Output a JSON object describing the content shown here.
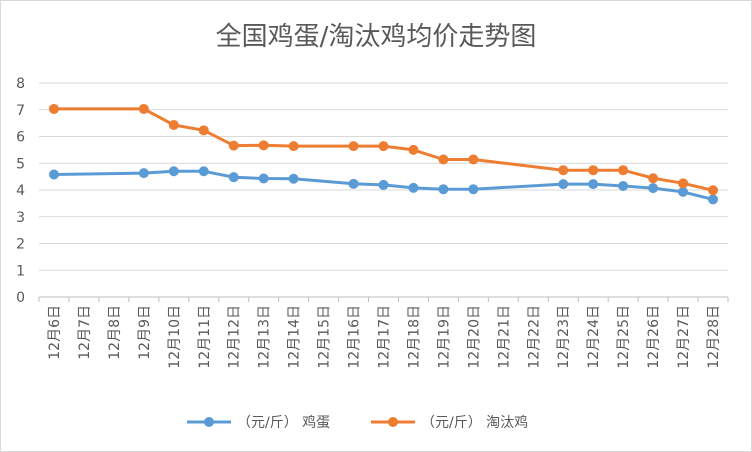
{
  "chart_data": {
    "type": "line",
    "title": "全国鸡蛋/淘汰鸡均价走势图",
    "xlabel": "",
    "ylabel": "",
    "ylim": [
      0,
      8
    ],
    "yticks": [
      "0",
      "1",
      "2",
      "3",
      "4",
      "5",
      "6",
      "7",
      "8"
    ],
    "grid": "horizontal",
    "legend_position": "bottom",
    "categories": [
      "12月6日",
      "12月7日",
      "12月8日",
      "12月9日",
      "12月10日",
      "12月11日",
      "12月12日",
      "12月13日",
      "12月14日",
      "12月15日",
      "12月16日",
      "12月17日",
      "12月18日",
      "12月19日",
      "12月20日",
      "12月21日",
      "12月22日",
      "12月23日",
      "12月24日",
      "12月25日",
      "12月26日",
      "12月27日",
      "12月28日"
    ],
    "series": [
      {
        "name": "（元/斤） 鸡蛋",
        "color": "#5b9bd5",
        "values": [
          4.58,
          null,
          null,
          4.63,
          4.7,
          4.7,
          4.48,
          4.43,
          4.42,
          null,
          4.23,
          4.19,
          4.08,
          4.03,
          4.03,
          null,
          null,
          4.22,
          4.22,
          4.15,
          4.07,
          3.93,
          3.65
        ]
      },
      {
        "name": "（元/斤） 淘汰鸡",
        "color": "#ed7d31",
        "values": [
          7.03,
          null,
          null,
          7.03,
          6.43,
          6.23,
          5.66,
          5.67,
          5.64,
          null,
          5.64,
          5.64,
          5.5,
          5.14,
          5.14,
          null,
          null,
          4.74,
          4.74,
          4.74,
          4.44,
          4.25,
          3.99
        ]
      }
    ]
  }
}
